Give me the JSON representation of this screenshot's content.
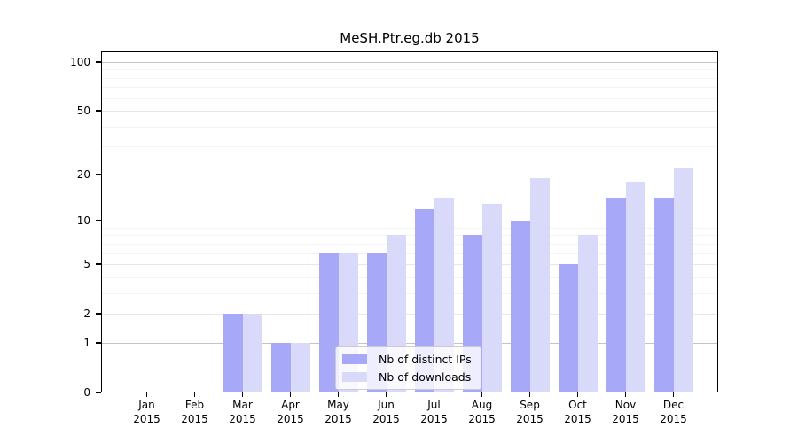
{
  "chart_data": {
    "type": "bar",
    "title": "MeSH.Ptr.eg.db 2015",
    "categories": [
      "Jan",
      "Feb",
      "Mar",
      "Apr",
      "May",
      "Jun",
      "Jul",
      "Aug",
      "Sep",
      "Oct",
      "Nov",
      "Dec"
    ],
    "category_year": "2015",
    "series": [
      {
        "name": "Nb of distinct IPs",
        "color": "#a8a8f8",
        "values": [
          0,
          0,
          2,
          1,
          6,
          6,
          12,
          8,
          10,
          5,
          14,
          14
        ]
      },
      {
        "name": "Nb of downloads",
        "color": "#d9d9f9",
        "values": [
          0,
          0,
          2,
          1,
          6,
          8,
          14,
          13,
          19,
          8,
          18,
          22
        ]
      }
    ],
    "xlabel": "",
    "ylabel": "",
    "yscale": "log1p",
    "ylim": [
      0,
      116
    ],
    "y_ticks": [
      0,
      1,
      2,
      5,
      10,
      20,
      50,
      100
    ],
    "y_decade_gridlines": [
      1,
      10,
      100
    ],
    "y_minor_gridlines": [
      3,
      4,
      6,
      7,
      8,
      9,
      30,
      40,
      60,
      70,
      80,
      90
    ],
    "grid": true,
    "legend_position": "inside-bottom-center"
  }
}
